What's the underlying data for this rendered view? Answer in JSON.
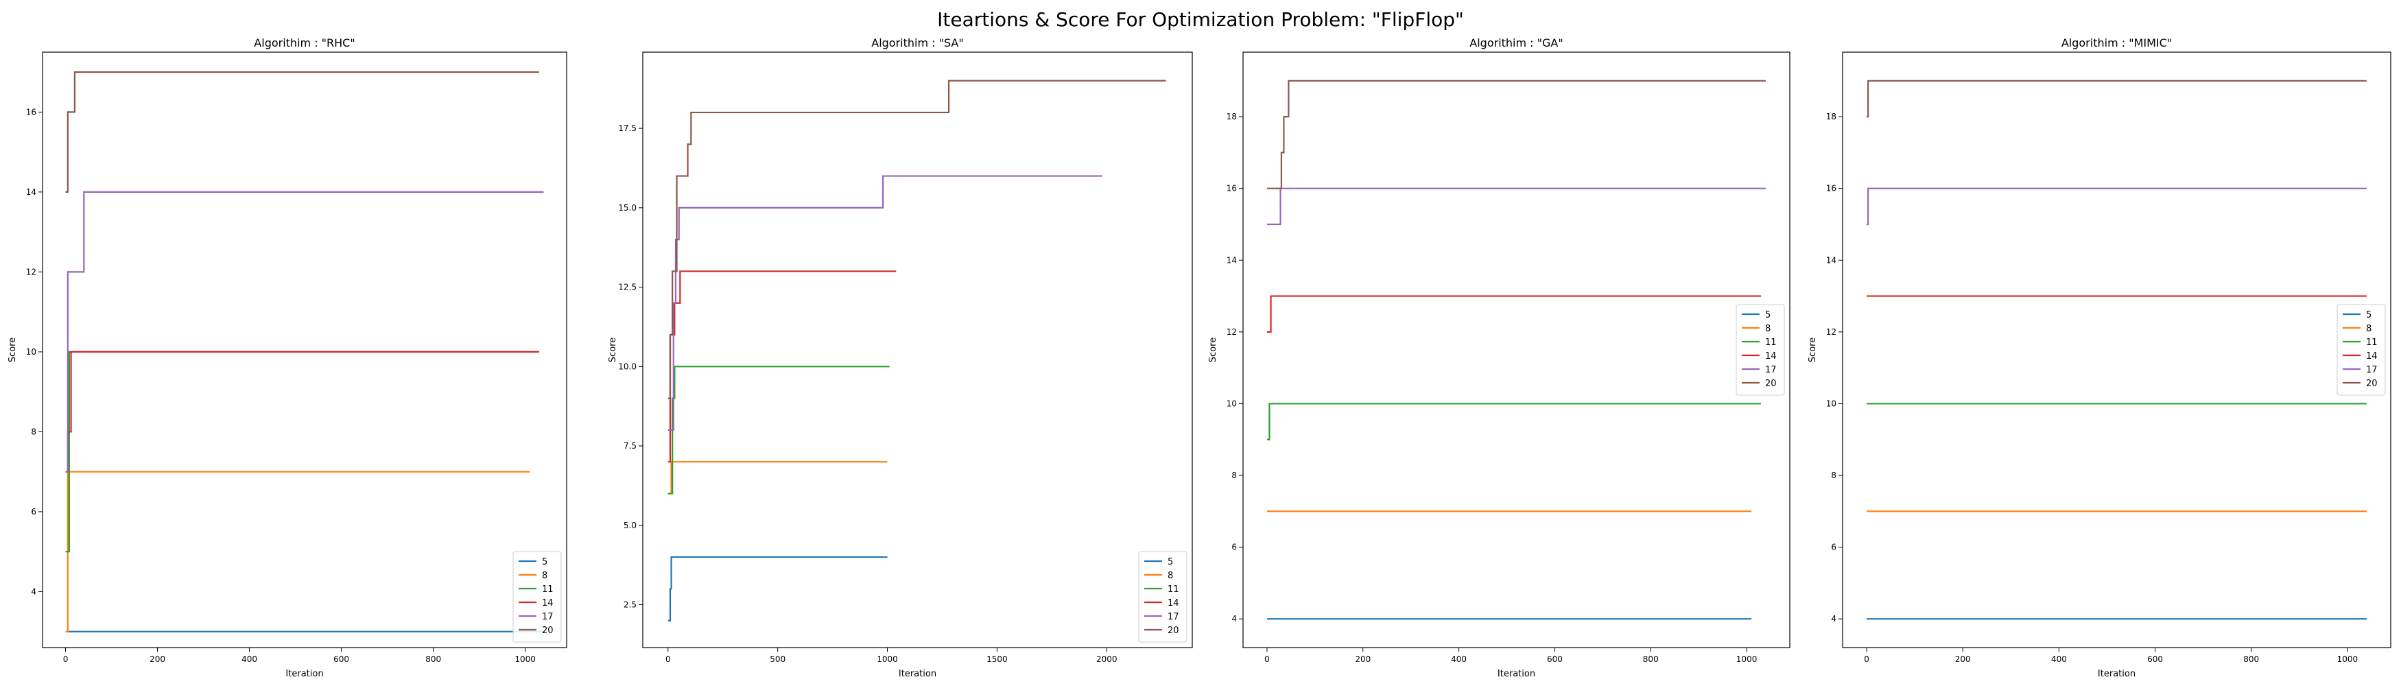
{
  "figure_title": "Iteartions & Score For Optimization Problem: \"FlipFlop\"",
  "colors": {
    "5": "#1f77b4",
    "8": "#ff7f0e",
    "11": "#2ca02c",
    "14": "#d62728",
    "17": "#9467bd",
    "20": "#8c564b"
  },
  "chart_data": [
    {
      "type": "line",
      "title": "Algorithim : \"RHC\"",
      "xlabel": "Iteration",
      "ylabel": "Score",
      "xlim": [
        -50,
        1090
      ],
      "ylim": [
        2.6,
        17.5
      ],
      "xticks": [
        0,
        200,
        400,
        600,
        800,
        1000
      ],
      "xticklabels": [
        "0",
        "200",
        "400",
        "600",
        "800",
        "1000"
      ],
      "yticks": [
        4,
        6,
        8,
        10,
        12,
        14,
        16
      ],
      "yticklabels": [
        "4",
        "6",
        "8",
        "10",
        "12",
        "14",
        "16"
      ],
      "legend": "lower-right",
      "series": [
        {
          "name": "5",
          "steps": [
            [
              0,
              3
            ],
            [
              1040,
              3
            ]
          ]
        },
        {
          "name": "8",
          "steps": [
            [
              0,
              3
            ],
            [
              5,
              7
            ],
            [
              1010,
              7
            ]
          ]
        },
        {
          "name": "11",
          "steps": [
            [
              0,
              5
            ],
            [
              5,
              5
            ],
            [
              8,
              10
            ],
            [
              1030,
              10
            ]
          ]
        },
        {
          "name": "14",
          "steps": [
            [
              0,
              7
            ],
            [
              5,
              8
            ],
            [
              12,
              10
            ],
            [
              1030,
              10
            ]
          ]
        },
        {
          "name": "17",
          "steps": [
            [
              0,
              7
            ],
            [
              5,
              12
            ],
            [
              40,
              14
            ],
            [
              1040,
              14
            ]
          ]
        },
        {
          "name": "20",
          "steps": [
            [
              0,
              14
            ],
            [
              5,
              16
            ],
            [
              20,
              17
            ],
            [
              1030,
              17
            ]
          ]
        }
      ]
    },
    {
      "type": "line",
      "title": "Algorithim : \"SA\"",
      "xlabel": "Iteration",
      "ylabel": "Score",
      "xlim": [
        -115,
        2390
      ],
      "ylim": [
        1.15,
        19.9
      ],
      "xticks": [
        0,
        500,
        1000,
        1500,
        2000
      ],
      "xticklabels": [
        "0",
        "500",
        "1000",
        "1500",
        "2000"
      ],
      "yticks": [
        2.5,
        5.0,
        7.5,
        10.0,
        12.5,
        15.0,
        17.5
      ],
      "yticklabels": [
        "2.5",
        "5.0",
        "7.5",
        "10.0",
        "12.5",
        "15.0",
        "17.5"
      ],
      "legend": "lower-right",
      "series": [
        {
          "name": "5",
          "steps": [
            [
              0,
              2
            ],
            [
              10,
              3
            ],
            [
              15,
              4
            ],
            [
              1000,
              4
            ]
          ]
        },
        {
          "name": "8",
          "steps": [
            [
              0,
              6
            ],
            [
              15,
              7
            ],
            [
              1000,
              7
            ]
          ]
        },
        {
          "name": "11",
          "steps": [
            [
              0,
              6
            ],
            [
              20,
              9
            ],
            [
              30,
              10
            ],
            [
              1010,
              10
            ]
          ]
        },
        {
          "name": "14",
          "steps": [
            [
              0,
              7
            ],
            [
              10,
              11
            ],
            [
              30,
              12
            ],
            [
              55,
              13
            ],
            [
              1040,
              13
            ]
          ]
        },
        {
          "name": "17",
          "steps": [
            [
              0,
              8
            ],
            [
              25,
              12
            ],
            [
              35,
              14
            ],
            [
              50,
              15
            ],
            [
              980,
              16
            ],
            [
              1980,
              16
            ]
          ]
        },
        {
          "name": "20",
          "steps": [
            [
              0,
              9
            ],
            [
              10,
              11
            ],
            [
              20,
              13
            ],
            [
              40,
              16
            ],
            [
              90,
              17
            ],
            [
              105,
              18
            ],
            [
              1280,
              19
            ],
            [
              2270,
              19
            ]
          ]
        }
      ]
    },
    {
      "type": "line",
      "title": "Algorithim : \"GA\"",
      "xlabel": "Iteration",
      "ylabel": "Score",
      "xlim": [
        -50,
        1090
      ],
      "ylim": [
        3.2,
        19.8
      ],
      "xticks": [
        0,
        200,
        400,
        600,
        800,
        1000
      ],
      "xticklabels": [
        "0",
        "200",
        "400",
        "600",
        "800",
        "1000"
      ],
      "yticks": [
        4,
        6,
        8,
        10,
        12,
        14,
        16,
        18
      ],
      "yticklabels": [
        "4",
        "6",
        "8",
        "10",
        "12",
        "14",
        "16",
        "18"
      ],
      "legend": "center-right",
      "series": [
        {
          "name": "5",
          "steps": [
            [
              0,
              4
            ],
            [
              1010,
              4
            ]
          ]
        },
        {
          "name": "8",
          "steps": [
            [
              0,
              7
            ],
            [
              1010,
              7
            ]
          ]
        },
        {
          "name": "11",
          "steps": [
            [
              0,
              9
            ],
            [
              5,
              10
            ],
            [
              1030,
              10
            ]
          ]
        },
        {
          "name": "14",
          "steps": [
            [
              0,
              12
            ],
            [
              8,
              13
            ],
            [
              1030,
              13
            ]
          ]
        },
        {
          "name": "17",
          "steps": [
            [
              0,
              15
            ],
            [
              28,
              16
            ],
            [
              1040,
              16
            ]
          ]
        },
        {
          "name": "20",
          "steps": [
            [
              0,
              16
            ],
            [
              30,
              17
            ],
            [
              35,
              18
            ],
            [
              45,
              19
            ],
            [
              1040,
              19
            ]
          ]
        }
      ]
    },
    {
      "type": "line",
      "title": "Algorithim : \"MIMIC\"",
      "xlabel": "Iteration",
      "ylabel": "Score",
      "xlim": [
        -50,
        1090
      ],
      "ylim": [
        3.2,
        19.8
      ],
      "xticks": [
        0,
        200,
        400,
        600,
        800,
        1000
      ],
      "xticklabels": [
        "0",
        "200",
        "400",
        "600",
        "800",
        "1000"
      ],
      "yticks": [
        4,
        6,
        8,
        10,
        12,
        14,
        16,
        18
      ],
      "yticklabels": [
        "4",
        "6",
        "8",
        "10",
        "12",
        "14",
        "16",
        "18"
      ],
      "legend": "center-right",
      "series": [
        {
          "name": "5",
          "steps": [
            [
              0,
              4
            ],
            [
              1040,
              4
            ]
          ]
        },
        {
          "name": "8",
          "steps": [
            [
              0,
              7
            ],
            [
              1040,
              7
            ]
          ]
        },
        {
          "name": "11",
          "steps": [
            [
              0,
              10
            ],
            [
              1040,
              10
            ]
          ]
        },
        {
          "name": "14",
          "steps": [
            [
              0,
              13
            ],
            [
              1040,
              13
            ]
          ]
        },
        {
          "name": "17",
          "steps": [
            [
              0,
              15
            ],
            [
              3,
              16
            ],
            [
              1040,
              16
            ]
          ]
        },
        {
          "name": "20",
          "steps": [
            [
              0,
              18
            ],
            [
              3,
              19
            ],
            [
              1040,
              19
            ]
          ]
        }
      ]
    }
  ]
}
